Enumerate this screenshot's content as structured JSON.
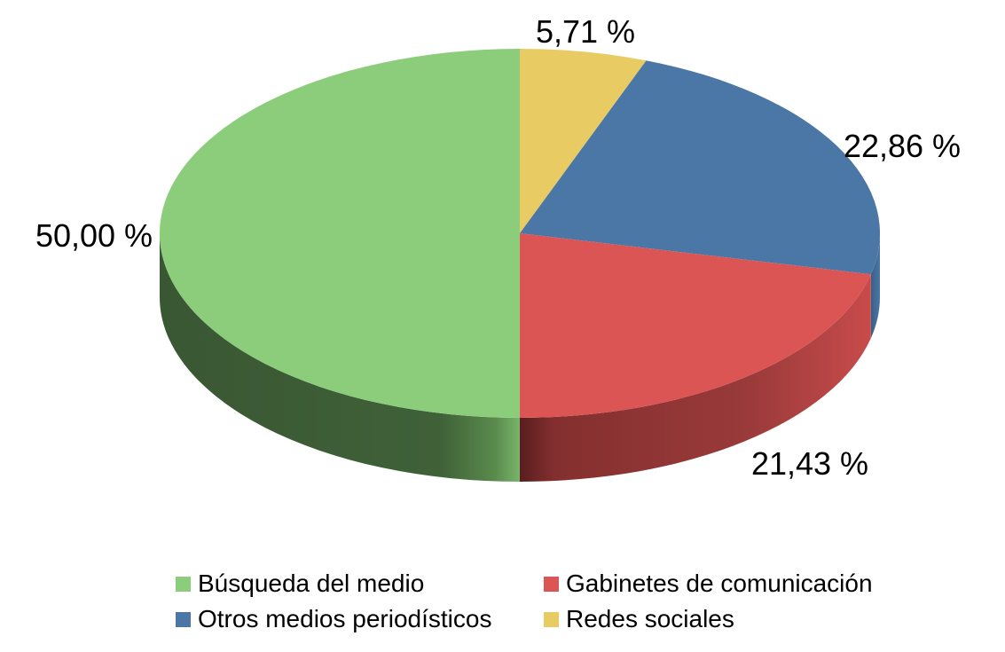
{
  "chart_data": {
    "type": "pie",
    "title": "",
    "series": [
      {
        "name": "Búsqueda del medio",
        "value": 50.0,
        "label": "50,00 %",
        "color": "#8bcd7b"
      },
      {
        "name": "Gabinetes de comunicación",
        "value": 21.43,
        "label": "21,43 %",
        "color": "#dc5555"
      },
      {
        "name": "Otros medios periodísticos",
        "value": 22.86,
        "label": "22,86 %",
        "color": "#4a77a5"
      },
      {
        "name": "Redes sociales",
        "value": 5.71,
        "label": "5,71 %",
        "color": "#e9cb63"
      }
    ],
    "legend_position": "bottom",
    "style": "3d"
  }
}
